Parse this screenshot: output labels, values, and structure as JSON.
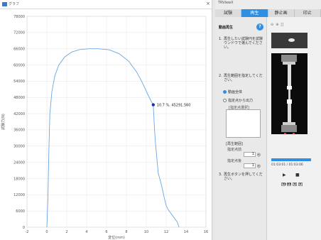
{
  "graph": {
    "window_title": "グラフ",
    "close_glyph": "×",
    "marker_label": "10.7 %, 45291.560",
    "chart_data": {
      "type": "line",
      "xlabel": "変位(mm)",
      "ylabel": "試験力(N)",
      "xlim": [
        -2,
        16
      ],
      "ylim": [
        0,
        78000
      ],
      "x_ticks": [
        "-2",
        "0",
        "2",
        "4",
        "6",
        "8",
        "10",
        "12",
        "14",
        "16"
      ],
      "y_ticks": [
        "0",
        "6000",
        "12000",
        "18000",
        "24000",
        "30000",
        "36000",
        "42000",
        "48000",
        "54000",
        "60000",
        "66000",
        "72000",
        "78000"
      ],
      "grid": true,
      "line_color": "#6aa6e2",
      "marker_color": "#1f2fa0",
      "marker": {
        "x": 10.7,
        "y": 45291.56
      },
      "series": [
        {
          "x": [
            0,
            0.1,
            0.2,
            0.3,
            0.5,
            0.8,
            1.2,
            1.8,
            2.5,
            3.3,
            4.2,
            5.2,
            6.3,
            7.3,
            8.2,
            9.0,
            9.6,
            10.1,
            10.5,
            10.7,
            10.8,
            10.9,
            11.0,
            11.2,
            11.5,
            11.8,
            12.0,
            12.2,
            12.5,
            12.8,
            13.1,
            13.3
          ],
          "y": [
            0,
            10000,
            28000,
            42000,
            50000,
            56000,
            60000,
            63000,
            64800,
            65700,
            66000,
            66000,
            65600,
            64100,
            61500,
            57600,
            53500,
            49500,
            46500,
            45291,
            38000,
            32000,
            28000,
            20000,
            16000,
            11000,
            8000,
            6500,
            5000,
            3500,
            2000,
            0
          ]
        }
      ]
    }
  },
  "panel": {
    "window_title": "TRViewX",
    "tabs": [
      "試験",
      "再生",
      "静止画",
      "印止"
    ],
    "active_tab": 1,
    "section_title": "動画再生",
    "help_glyph": "?",
    "steps": [
      {
        "num": "1.",
        "text": "再生したい試験円を試験ウンドウで選んでください。"
      },
      {
        "num": "2.",
        "text": "再生範囲を指定してください。"
      },
      {
        "num": "3.",
        "text": "再生ボタンを押してください。"
      }
    ],
    "radio_all": "動画全体",
    "radio_range": "指定点から出力",
    "range_hint": "[指定点選択]",
    "range_label": "[再生範囲]",
    "start_label": "指定点前",
    "start_value": "1",
    "end_label": "指定点後",
    "end_value": "1",
    "unit": "秒",
    "time_display": "01:03:01 / 01:03:06",
    "play_glyph": "▶",
    "stop_glyph": "■",
    "rewind_glyph": "◀◀",
    "forward_glyph": "▶▶",
    "step_back_glyph": "◀|",
    "step_fwd_glyph": "|▶",
    "toolbar_glyphs": [
      "⊖",
      "⊕",
      "[]"
    ]
  },
  "colors": {
    "accent": "#2f8fe0"
  }
}
